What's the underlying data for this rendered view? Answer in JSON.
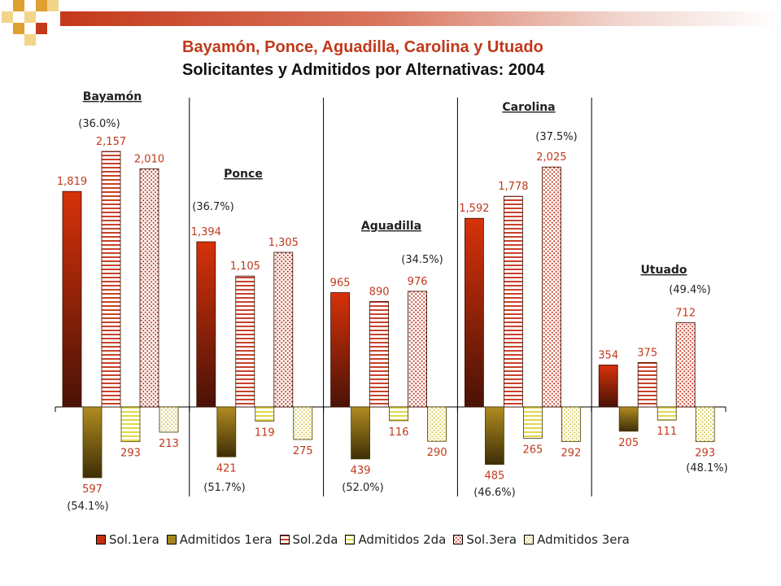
{
  "title": "Bayamón, Ponce, Aguadilla, Carolina y Utuado",
  "subtitle": "Solicitantes y Admitidos por Alternativas: 2004",
  "colors": {
    "sol1": "#c4300c",
    "adm1": "#a8861c",
    "sol2_stripe": "#c8422a",
    "adm2_stripe": "#e2d84a",
    "sol3_dot": "#c8422a",
    "adm3_dot": "#d4c440",
    "value_label": "#c0391b",
    "title_red": "#c0391b"
  },
  "legend": [
    "Sol.1era",
    "Admitidos 1era",
    "Sol.2da",
    "Admitidos 2da",
    "Sol.3era",
    "Admitidos 3era"
  ],
  "chart_data": {
    "type": "bar",
    "title": "Solicitantes y Admitidos por Alternativas: 2004",
    "series_names": [
      "Sol.1era",
      "Admitidos 1era",
      "Sol.2da",
      "Admitidos 2da",
      "Sol.3era",
      "Admitidos 3era"
    ],
    "ylim": [
      -620,
      2200
    ],
    "grid": false,
    "legend_position": "bottom",
    "groups": [
      {
        "name": "Bayamón",
        "sol": [
          1819,
          2157,
          2010
        ],
        "adm": [
          597,
          293,
          213
        ],
        "sol_labels": [
          "1,819",
          "2,157",
          "2,010"
        ],
        "adm_labels": [
          "597",
          "293",
          "213"
        ],
        "pct_sol": "(36.0%)",
        "pct_adm": "(54.1%)"
      },
      {
        "name": "Ponce",
        "sol": [
          1394,
          1105,
          1305
        ],
        "adm": [
          421,
          119,
          275
        ],
        "sol_labels": [
          "1,394",
          "1,105",
          "1,305"
        ],
        "adm_labels": [
          "421",
          "119",
          "275"
        ],
        "pct_sol": "(36.7%)",
        "pct_adm": "(51.7%)"
      },
      {
        "name": "Aguadilla",
        "sol": [
          965,
          890,
          976
        ],
        "adm": [
          439,
          116,
          290
        ],
        "sol_labels": [
          "965",
          "890",
          "976"
        ],
        "adm_labels": [
          "439",
          "116",
          "290"
        ],
        "pct_sol": "(34.5%)",
        "pct_adm": "(52.0%)"
      },
      {
        "name": "Carolina",
        "sol": [
          1592,
          1778,
          2025
        ],
        "adm": [
          485,
          265,
          292
        ],
        "sol_labels": [
          "1,592",
          "1,778",
          "2,025"
        ],
        "adm_labels": [
          "485",
          "265",
          "292"
        ],
        "pct_sol": "(37.5%)",
        "pct_adm": "(46.6%)"
      },
      {
        "name": "Utuado",
        "sol": [
          354,
          375,
          712
        ],
        "adm": [
          205,
          111,
          293
        ],
        "sol_labels": [
          "354",
          "375",
          "712"
        ],
        "adm_labels": [
          "205",
          "111",
          "293"
        ],
        "pct_sol": "(49.4%)",
        "pct_adm": "(48.1%)"
      }
    ]
  }
}
